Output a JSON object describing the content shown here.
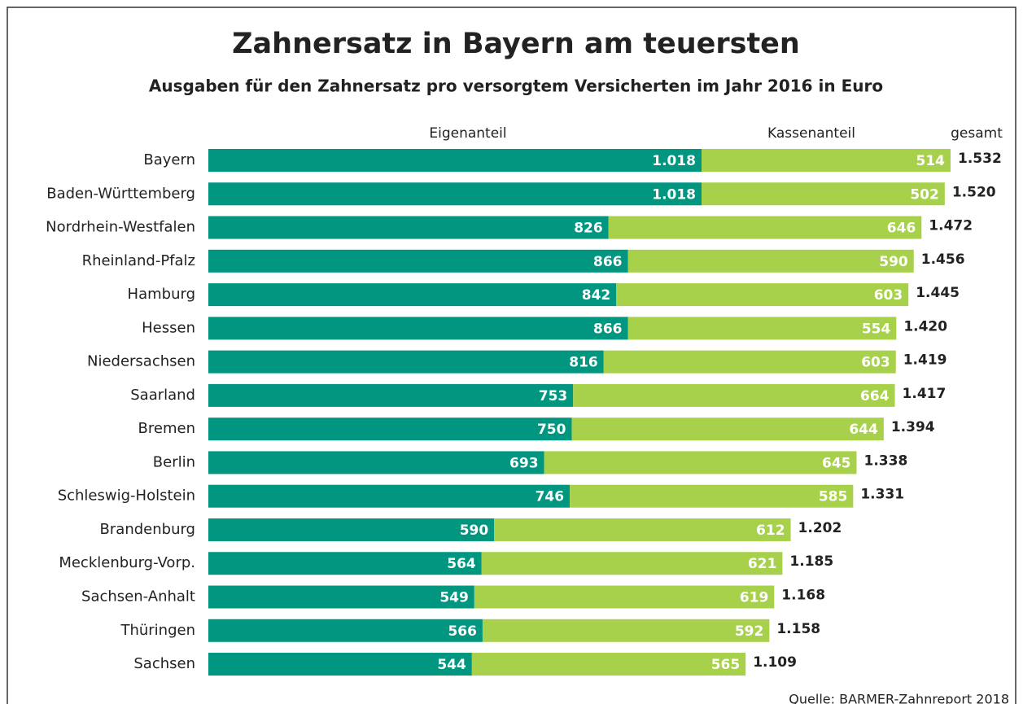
{
  "chart_data": {
    "type": "stacked-bar-horizontal",
    "title": "Zahnersatz in Bayern am teuersten",
    "subtitle": "Ausgaben für den Zahnersatz pro versorgtem Versicherten im Jahr 2016 in Euro",
    "categories": [
      "Bayern",
      "Baden-Württemberg",
      "Nordrhein-Westfalen",
      "Rheinland-Pfalz",
      "Hamburg",
      "Hessen",
      "Niedersachsen",
      "Saarland",
      "Bremen",
      "Berlin",
      "Schleswig-Holstein",
      "Brandenburg",
      "Mecklenburg-Vorp.",
      "Sachsen-Anhalt",
      "Thüringen",
      "Sachsen"
    ],
    "series": [
      {
        "name": "Eigenanteil",
        "color": "#00967f",
        "values": [
          1018,
          1018,
          826,
          866,
          842,
          866,
          816,
          753,
          750,
          693,
          746,
          590,
          564,
          549,
          566,
          544
        ],
        "value_labels": [
          "1.018",
          "1.018",
          "826",
          "866",
          "842",
          "866",
          "816",
          "753",
          "750",
          "693",
          "746",
          "590",
          "564",
          "549",
          "566",
          "544"
        ]
      },
      {
        "name": "Kassenanteil",
        "color": "#a8d14b",
        "values": [
          514,
          502,
          646,
          590,
          603,
          554,
          603,
          664,
          644,
          645,
          585,
          612,
          621,
          619,
          592,
          565
        ]
      }
    ],
    "totals": {
      "name": "gesamt",
      "values": [
        1532,
        1520,
        1472,
        1456,
        1445,
        1420,
        1419,
        1417,
        1394,
        1338,
        1331,
        1202,
        1185,
        1168,
        1158,
        1109
      ],
      "value_labels": [
        "1.532",
        "1.520",
        "1.472",
        "1.456",
        "1.445",
        "1.420",
        "1.419",
        "1.417",
        "1.394",
        "1.338",
        "1.331",
        "1.202",
        "1.185",
        "1.168",
        "1.158",
        "1.109"
      ]
    },
    "source": "Quelle: BARMER-Zahnreport 2018"
  }
}
